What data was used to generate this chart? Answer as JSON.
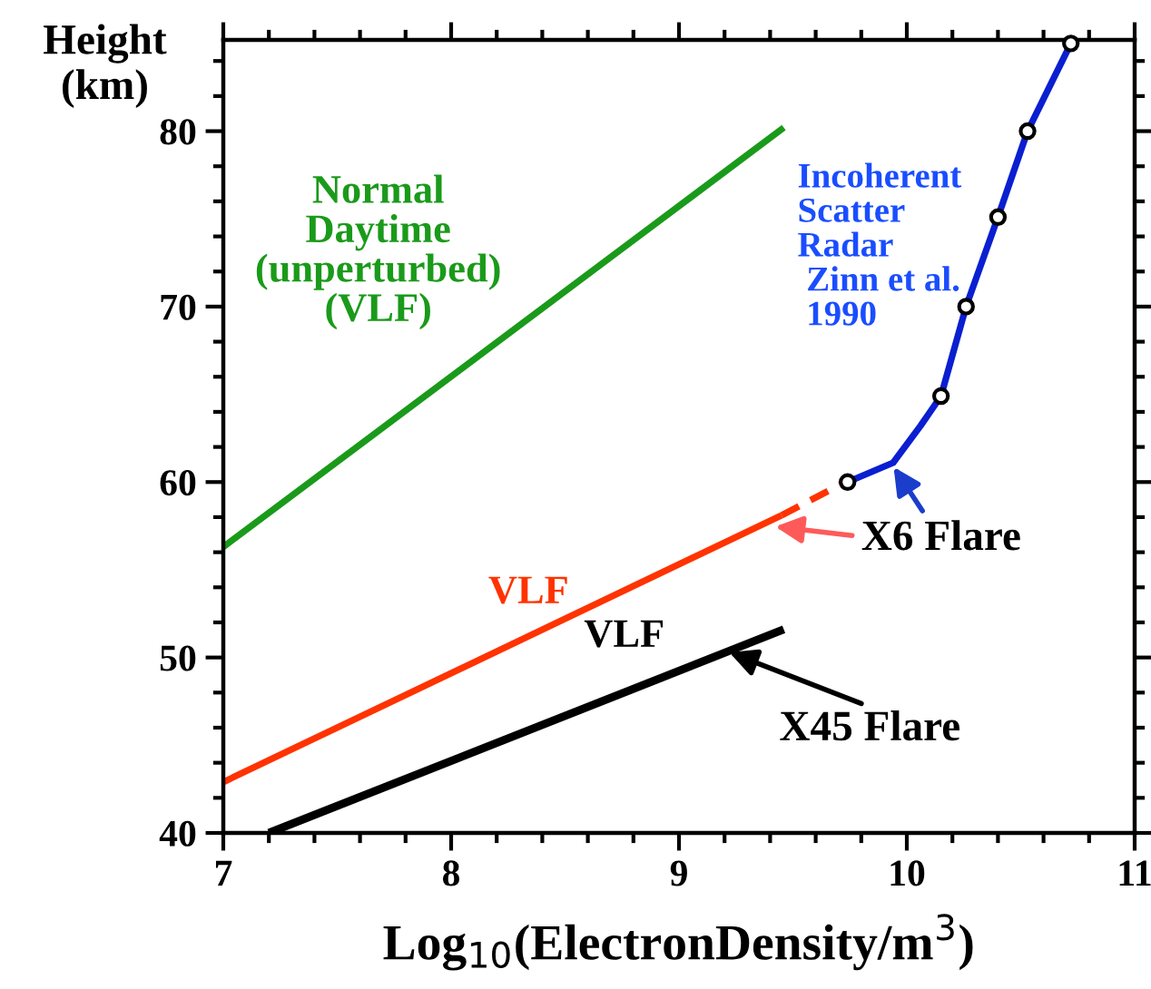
{
  "chart_data": {
    "type": "line",
    "xlabel": "Log$_{10}$(ElectronDensity/m$^{3}$)",
    "ylabel": "Height\n(km)",
    "xlim": [
      7,
      11
    ],
    "xticks": [
      7,
      8,
      9,
      10,
      11
    ],
    "ylim": [
      40,
      85.2
    ],
    "yticks": [
      40,
      50,
      60,
      70,
      80
    ],
    "grid": false,
    "series": [
      {
        "name": "Normal\nDaytime\n(unperturbed)\n(VLF)",
        "color": "#1a9a1a",
        "x": [
          7,
          9.46
        ],
        "values": [
          56.3,
          80.2
        ],
        "line_style": "solid",
        "marker": "none"
      },
      {
        "name": "VLF",
        "color": "#ff3300",
        "x": [
          7,
          9.45
        ],
        "values": [
          42.9,
          58.1
        ],
        "line_style": "solid",
        "marker": "none"
      },
      {
        "color": "#ff3300",
        "x": [
          9.45,
          9.73
        ],
        "values": [
          58.1,
          60.0
        ],
        "line_style": "dashed",
        "marker": "none"
      },
      {
        "name": "VLF",
        "color": "#000000",
        "x": [
          7.2,
          9.46
        ],
        "values": [
          40.0,
          51.6
        ],
        "line_style": "solid",
        "marker": "none"
      },
      {
        "name": "Incoherent\nScatter\nRadar\n Zinn et al.\n 1990",
        "color": "#0a1fd0",
        "x": [
          9.74,
          9.94,
          10.06,
          10.15,
          10.26,
          10.4,
          10.53,
          10.72
        ],
        "values": [
          60.0,
          61.1,
          63.2,
          64.9,
          70.0,
          75.1,
          80.0,
          85.0
        ],
        "line_style": "solid",
        "marker": "none"
      },
      {
        "type": "scatter",
        "color": "#000000",
        "x": [
          9.74,
          10.15,
          10.26,
          10.4,
          10.53,
          10.72
        ],
        "values": [
          60.0,
          64.9,
          70.0,
          75.1,
          80.0,
          85.0
        ],
        "marker": "circle"
      }
    ],
    "annotations": [
      {
        "text": "X6 Flare",
        "x": 9.93,
        "y": 61.1
      },
      {
        "text": "X45 Flare",
        "x": 9.2,
        "y": 50.4
      }
    ]
  }
}
